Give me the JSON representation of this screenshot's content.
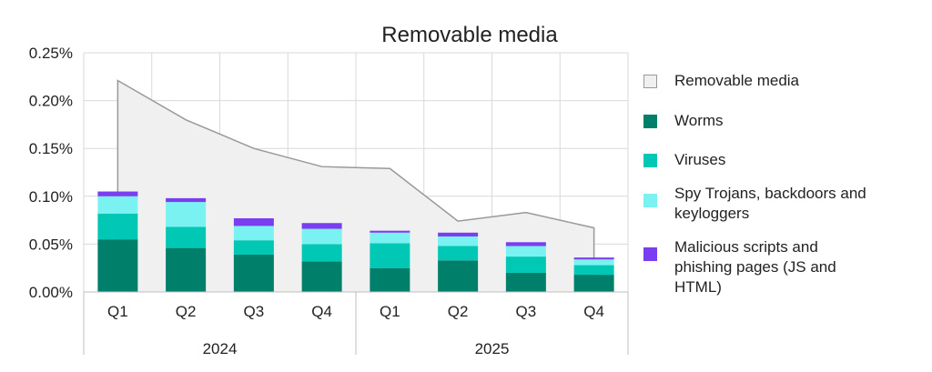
{
  "chart_data": {
    "type": "bar",
    "title": "Removable media",
    "xlabel": "",
    "ylabel": "",
    "ylim": [
      0,
      0.25
    ],
    "y_ticks": [
      "0.00%",
      "0.05%",
      "0.10%",
      "0.15%",
      "0.20%",
      "0.25%"
    ],
    "categories": [
      "Q1",
      "Q2",
      "Q3",
      "Q4",
      "Q1",
      "Q2",
      "Q3",
      "Q4"
    ],
    "groups": [
      {
        "label": "2024",
        "count": 4
      },
      {
        "label": "2025",
        "count": 4
      }
    ],
    "area_series": {
      "name": "Removable media",
      "values": [
        0.221,
        0.18,
        0.15,
        0.131,
        0.129,
        0.074,
        0.083,
        0.067
      ],
      "color": "#f0f0f0",
      "stroke": "#999999"
    },
    "series": [
      {
        "name": "Worms",
        "values": [
          0.055,
          0.046,
          0.039,
          0.032,
          0.025,
          0.033,
          0.02,
          0.018
        ],
        "color": "#00806a"
      },
      {
        "name": "Viruses",
        "values": [
          0.027,
          0.022,
          0.015,
          0.018,
          0.026,
          0.015,
          0.017,
          0.01
        ],
        "color": "#00c8b4"
      },
      {
        "name": "Spy Trojans, backdoors and keyloggers",
        "values": [
          0.018,
          0.026,
          0.015,
          0.016,
          0.011,
          0.01,
          0.011,
          0.006
        ],
        "color": "#7af2f2"
      },
      {
        "name": "Malicious scripts and phishing pages (JS and HTML)",
        "values": [
          0.005,
          0.004,
          0.008,
          0.006,
          0.002,
          0.004,
          0.004,
          0.002
        ],
        "color": "#7a3df0"
      }
    ],
    "legend": {
      "position": "right",
      "items": [
        {
          "label": "Removable media",
          "color": "#f0f0f0"
        },
        {
          "label": "Worms",
          "color": "#00806a"
        },
        {
          "label": "Viruses",
          "color": "#00c8b4"
        },
        {
          "label": "Spy Trojans, backdoors and keyloggers",
          "color": "#7af2f2"
        },
        {
          "label": "Malicious scripts and phishing pages (JS and HTML)",
          "color": "#7a3df0"
        }
      ]
    },
    "grid": true
  }
}
